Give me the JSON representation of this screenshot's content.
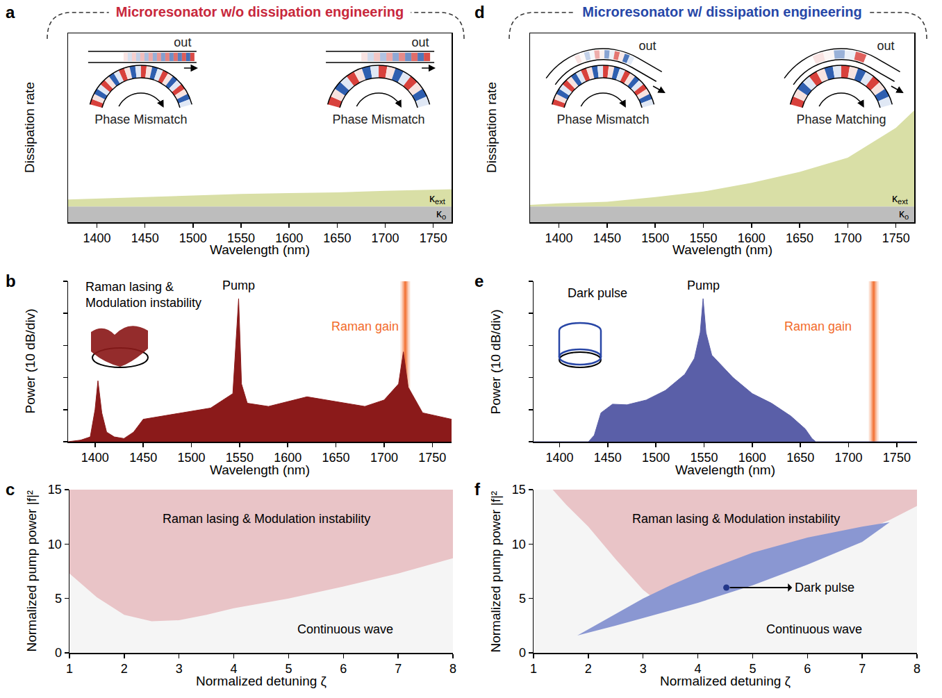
{
  "chart_data": [
    {
      "panel": "a",
      "type": "area",
      "title": "Microresonator w/o dissipation engineering",
      "x_label": "Wavelength (nm)",
      "y_label": "Dissipation rate",
      "xlim": [
        1370,
        1769
      ],
      "xticks": [
        1400,
        1450,
        1500,
        1550,
        1600,
        1650,
        1700,
        1750
      ],
      "ylim": [
        0,
        12
      ],
      "tick_labels": "x",
      "stacked": true,
      "x": [
        1370,
        1400,
        1450,
        1500,
        1550,
        1600,
        1650,
        1700,
        1750,
        1769
      ],
      "series": [
        {
          "name": "κo",
          "color": "#bdbdbd",
          "values": [
            1,
            1,
            1,
            1,
            1,
            1,
            1,
            1,
            1,
            1
          ]
        },
        {
          "name": "κext",
          "color": "#d9dfa6",
          "values": [
            0.45,
            0.5,
            0.6,
            0.7,
            0.8,
            0.85,
            0.9,
            1.0,
            1.05,
            1.1
          ]
        }
      ],
      "insets": [
        {
          "label": "out",
          "caption": "Phase Mismatch"
        },
        {
          "label": "out",
          "caption": "Phase Mismatch"
        }
      ]
    },
    {
      "panel": "b",
      "type": "line",
      "x_label": "Wavelength (nm)",
      "y_label": "Power (10 dB/div)",
      "xlim": [
        1372,
        1770
      ],
      "xticks": [
        1400,
        1450,
        1500,
        1550,
        1600,
        1650,
        1700,
        1750
      ],
      "ylim": [
        0,
        50
      ],
      "yticks": [
        0,
        10,
        20,
        30,
        40,
        50
      ],
      "tick_labels": "x",
      "color": "#8b1a1a",
      "x": [
        1372,
        1385,
        1395,
        1400,
        1403,
        1407,
        1412,
        1420,
        1430,
        1440,
        1450,
        1470,
        1500,
        1520,
        1543,
        1549,
        1552,
        1558,
        1580,
        1600,
        1620,
        1650,
        1680,
        1700,
        1715,
        1720,
        1725,
        1740,
        1770
      ],
      "values": [
        0,
        0.5,
        1.5,
        10,
        19,
        9,
        3,
        1.5,
        1,
        3,
        7,
        8,
        9.5,
        10.5,
        15,
        44.6,
        18,
        12,
        11,
        12.5,
        14,
        12.5,
        11,
        13,
        18,
        28,
        17,
        9,
        7
      ],
      "bands": [
        {
          "x": 1722,
          "color": "#f26b2a",
          "label": "Raman gain",
          "label_x": 1680,
          "label_y": 36
        }
      ],
      "annotations": [
        {
          "text": "Pump",
          "x": 1549,
          "y": 48.7
        },
        {
          "lines": [
            "Raman lasing &",
            "Modulation instability"
          ],
          "x": 1450,
          "y": 45.7
        }
      ]
    },
    {
      "panel": "c",
      "type": "region",
      "x_label": "Normalized detuning ζ",
      "y_label": "Normalized pump power |f|²",
      "xlim": [
        1,
        8
      ],
      "xticks": [
        1,
        2,
        3,
        4,
        5,
        6,
        7,
        8
      ],
      "ylim": [
        0,
        15
      ],
      "yticks": [
        0,
        5,
        10,
        15
      ],
      "regions": [
        {
          "label": "Continuous wave",
          "color": "#f5f5f5",
          "x": [
            1,
            8
          ],
          "lower": [
            0,
            0
          ],
          "upper": [
            15,
            15
          ],
          "label_x": 6.03,
          "label_y": 2.2
        },
        {
          "label": "Raman lasing & Modulation instability",
          "color": "#e9c4c7",
          "x": [
            1,
            1.5,
            2,
            2.5,
            3,
            3.5,
            4,
            5,
            6,
            7,
            8
          ],
          "lower": [
            7.3,
            5.1,
            3.5,
            2.9,
            3.0,
            3.5,
            4.1,
            5.0,
            6.1,
            7.3,
            8.7
          ],
          "upper": [
            15,
            15,
            15,
            15,
            15,
            15,
            15,
            15,
            15,
            15,
            15
          ],
          "label_x": 4.6,
          "label_y": 12.3
        }
      ]
    },
    {
      "panel": "d",
      "type": "area",
      "title": "Microresonator w/ dissipation engineering",
      "x_label": "Wavelength (nm)",
      "y_label": "Dissipation rate",
      "xlim": [
        1370,
        1769
      ],
      "xticks": [
        1400,
        1450,
        1500,
        1550,
        1600,
        1650,
        1700,
        1750
      ],
      "ylim": [
        0,
        12
      ],
      "tick_labels": "x",
      "stacked": true,
      "x": [
        1370,
        1400,
        1450,
        1500,
        1550,
        1600,
        1650,
        1700,
        1750,
        1769
      ],
      "series": [
        {
          "name": "κo",
          "color": "#bdbdbd",
          "values": [
            1,
            1,
            1,
            1,
            1,
            1,
            1,
            1,
            1,
            1
          ]
        },
        {
          "name": "κext",
          "color": "#d9dfa6",
          "values": [
            0.1,
            0.2,
            0.3,
            0.6,
            0.95,
            1.5,
            2.2,
            3.1,
            5.0,
            6.1
          ]
        }
      ],
      "insets": [
        {
          "label": "out",
          "caption": "Phase Mismatch"
        },
        {
          "label": "out",
          "caption": "Phase Matching"
        }
      ]
    },
    {
      "panel": "e",
      "type": "line",
      "x_label": "Wavelength (nm)",
      "y_label": "Power (10 dB/div)",
      "xlim": [
        1373,
        1771
      ],
      "xticks": [
        1400,
        1450,
        1500,
        1550,
        1600,
        1650,
        1700,
        1750
      ],
      "ylim": [
        0,
        50
      ],
      "yticks": [
        0,
        10,
        20,
        30,
        40,
        50
      ],
      "tick_labels": "x",
      "color": "#5a5fa8",
      "x": [
        1373,
        1430,
        1436,
        1443,
        1455,
        1470,
        1490,
        1510,
        1530,
        1540,
        1546,
        1549,
        1552,
        1558,
        1580,
        1600,
        1620,
        1640,
        1655,
        1662,
        1666,
        1771
      ],
      "values": [
        0,
        0,
        2,
        9,
        11.7,
        11.5,
        13,
        16,
        21,
        26,
        34,
        44.6,
        34,
        27,
        20,
        15,
        12,
        8,
        4,
        1,
        0,
        0
      ],
      "bands": [
        {
          "x": 1726,
          "color": "#f26b2a",
          "label": "Raman gain",
          "label_x": 1668,
          "label_y": 36
        }
      ],
      "annotations": [
        {
          "text": "Pump",
          "x": 1549,
          "y": 48.7
        },
        {
          "text": "Dark pulse",
          "x": 1439,
          "y": 46.3
        }
      ]
    },
    {
      "panel": "f",
      "type": "region",
      "x_label": "Normalized detuning ζ",
      "y_label": "Normalized pump power |f|²",
      "xlim": [
        1,
        8
      ],
      "xticks": [
        1,
        2,
        3,
        4,
        5,
        6,
        7,
        8
      ],
      "ylim": [
        0,
        15
      ],
      "yticks": [
        0,
        5,
        10,
        15
      ],
      "regions": [
        {
          "label": "Continuous wave",
          "color": "#f5f5f5",
          "x": [
            1,
            8
          ],
          "lower": [
            0,
            0
          ],
          "upper": [
            15,
            15
          ],
          "label_x": 6.12,
          "label_y": 2.2
        },
        {
          "label": "Raman lasing & Modulation instability",
          "color": "#e9c4c7",
          "x": [
            1.35,
            1.6,
            2,
            2.5,
            3,
            3.2,
            3.5,
            4,
            5,
            6,
            7,
            7.5,
            8
          ],
          "lower": [
            15,
            13.6,
            11.6,
            8.6,
            5.8,
            5.0,
            5.3,
            5.9,
            7.5,
            9.3,
            11.2,
            12.2,
            13.5
          ],
          "upper": [
            15,
            15,
            15,
            15,
            15,
            15,
            15,
            15,
            15,
            15,
            15,
            15,
            15
          ],
          "label_x": 4.7,
          "label_y": 12.3
        },
        {
          "label": "Dark pulse",
          "color": "#8a97d2",
          "x": [
            1.8,
            2.5,
            3,
            3.5,
            4,
            5,
            6,
            7,
            7.5
          ],
          "lower": [
            1.6,
            2.5,
            3.2,
            3.9,
            4.6,
            6.2,
            8.1,
            10.2,
            12.0
          ],
          "upper": [
            1.6,
            3.6,
            5.0,
            6.2,
            7.3,
            9.2,
            10.6,
            11.6,
            12.0
          ],
          "point": {
            "x": 4.52,
            "y": 6.0
          },
          "label_x": 6.31,
          "label_y": 6.0
        }
      ]
    }
  ]
}
